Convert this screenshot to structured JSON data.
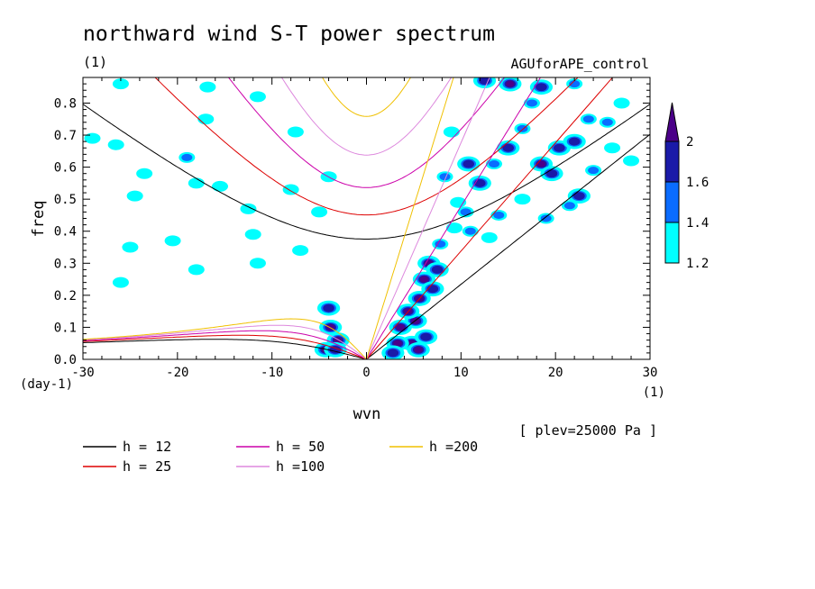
{
  "header": {
    "title": "northward wind S-T power spectrum",
    "subtitle_left": "(1)",
    "subtitle_right": "AGUforAPE_control",
    "plev": "[ plev=25000 Pa ]"
  },
  "chart_data": {
    "type": "heatmap",
    "title": "northward wind S-T power spectrum",
    "xlabel": "wvn",
    "ylabel": "freq",
    "x_unit_label": "(1)",
    "y_unit_label": "(day-1)",
    "xlim": [
      -30,
      30
    ],
    "ylim": [
      0,
      0.88
    ],
    "x_ticks": [
      -30,
      -20,
      -10,
      0,
      10,
      20,
      30
    ],
    "x_tick_labels": [
      "-30",
      "-20",
      "-10",
      "0",
      "10",
      "20",
      "30"
    ],
    "y_ticks": [
      0,
      0.1,
      0.2,
      0.3,
      0.4,
      0.5,
      0.6,
      0.7,
      0.8
    ],
    "y_tick_labels": [
      "0.0",
      "0.1",
      "0.2",
      "0.3",
      "0.4",
      "0.5",
      "0.6",
      "0.7",
      "0.8"
    ],
    "colorbar": {
      "levels": [
        1.2,
        1.4,
        1.6,
        2
      ],
      "level_labels": [
        "1.2",
        "1.4",
        "1.6",
        "2"
      ],
      "colors": [
        "#00ffff",
        "#0a6cff",
        "#1a1aa8",
        "#4b0088"
      ]
    },
    "dispersion_curves": [
      {
        "name": "h = 12",
        "h": 12,
        "color": "#000000"
      },
      {
        "name": "h = 25",
        "h": 25,
        "color": "#dd0000"
      },
      {
        "name": "h = 50",
        "h": 50,
        "color": "#cc00aa"
      },
      {
        "name": "h =100",
        "h": 100,
        "color": "#dd88dd"
      },
      {
        "name": "h =200",
        "h": 200,
        "color": "#f0c000"
      }
    ],
    "power_blobs": [
      {
        "x": 4.8,
        "y": 0.05,
        "level": 2
      },
      {
        "x": 5.2,
        "y": 0.12,
        "level": 2
      },
      {
        "x": 5.6,
        "y": 0.19,
        "level": 2
      },
      {
        "x": 6.1,
        "y": 0.25,
        "level": 2
      },
      {
        "x": 6.6,
        "y": 0.3,
        "level": 2
      },
      {
        "x": 3.3,
        "y": 0.05,
        "level": 2
      },
      {
        "x": 3.6,
        "y": 0.1,
        "level": 2
      },
      {
        "x": 4.4,
        "y": 0.15,
        "level": 2
      },
      {
        "x": 5.5,
        "y": 0.03,
        "level": 2
      },
      {
        "x": 7.0,
        "y": 0.22,
        "level": 1.6
      },
      {
        "x": 7.5,
        "y": 0.28,
        "level": 1.6
      },
      {
        "x": -3.8,
        "y": 0.1,
        "level": 2
      },
      {
        "x": -4.3,
        "y": 0.03,
        "level": 2
      },
      {
        "x": -3.0,
        "y": 0.06,
        "level": 2
      },
      {
        "x": -4.0,
        "y": 0.16,
        "level": 1.6
      },
      {
        "x": -3.3,
        "y": 0.03,
        "level": 1.6
      },
      {
        "x": 2.8,
        "y": 0.02,
        "level": 1.6
      },
      {
        "x": 6.3,
        "y": 0.07,
        "level": 1.6
      },
      {
        "x": 7.8,
        "y": 0.36,
        "level": 1.4
      },
      {
        "x": 9.3,
        "y": 0.41,
        "level": 1.2
      },
      {
        "x": 10.5,
        "y": 0.46,
        "level": 1.4
      },
      {
        "x": 12.0,
        "y": 0.55,
        "level": 1.6
      },
      {
        "x": 13.5,
        "y": 0.61,
        "level": 1.4
      },
      {
        "x": 15.0,
        "y": 0.66,
        "level": 1.6
      },
      {
        "x": 16.5,
        "y": 0.72,
        "level": 1.4
      },
      {
        "x": 18.5,
        "y": 0.61,
        "level": 2
      },
      {
        "x": 19.6,
        "y": 0.58,
        "level": 1.6
      },
      {
        "x": 20.4,
        "y": 0.66,
        "level": 1.6
      },
      {
        "x": 22.0,
        "y": 0.68,
        "level": 1.6
      },
      {
        "x": 22.5,
        "y": 0.51,
        "level": 1.6
      },
      {
        "x": 21.5,
        "y": 0.48,
        "level": 1.4
      },
      {
        "x": 24.0,
        "y": 0.59,
        "level": 1.4
      },
      {
        "x": 25.5,
        "y": 0.74,
        "level": 1.4
      },
      {
        "x": 27.0,
        "y": 0.8,
        "level": 1.2
      },
      {
        "x": 15.2,
        "y": 0.86,
        "level": 2
      },
      {
        "x": 18.5,
        "y": 0.85,
        "level": 1.6
      },
      {
        "x": 12.5,
        "y": 0.87,
        "level": 1.6
      },
      {
        "x": 22.0,
        "y": 0.86,
        "level": 1.4
      },
      {
        "x": 17.5,
        "y": 0.8,
        "level": 1.4
      },
      {
        "x": 23.5,
        "y": 0.75,
        "level": 1.4
      },
      {
        "x": 9.0,
        "y": 0.71,
        "level": 1.2
      },
      {
        "x": 10.8,
        "y": 0.61,
        "level": 1.6
      },
      {
        "x": 8.3,
        "y": 0.57,
        "level": 1.4
      },
      {
        "x": 9.7,
        "y": 0.49,
        "level": 1.2
      },
      {
        "x": 14.0,
        "y": 0.45,
        "level": 1.4
      },
      {
        "x": 16.5,
        "y": 0.5,
        "level": 1.2
      },
      {
        "x": 19.0,
        "y": 0.44,
        "level": 1.4
      },
      {
        "x": 26.0,
        "y": 0.66,
        "level": 1.2
      },
      {
        "x": 28.0,
        "y": 0.62,
        "level": 1.2
      },
      {
        "x": 13.0,
        "y": 0.38,
        "level": 1.2
      },
      {
        "x": 11.0,
        "y": 0.4,
        "level": 1.4
      },
      {
        "x": -26.5,
        "y": 0.67,
        "level": 1.2
      },
      {
        "x": -29.0,
        "y": 0.69,
        "level": 1.2
      },
      {
        "x": -23.5,
        "y": 0.58,
        "level": 1.2
      },
      {
        "x": -24.5,
        "y": 0.51,
        "level": 1.2
      },
      {
        "x": -19.0,
        "y": 0.63,
        "level": 1.4
      },
      {
        "x": -18.0,
        "y": 0.55,
        "level": 1.2
      },
      {
        "x": -17.0,
        "y": 0.75,
        "level": 1.2
      },
      {
        "x": -15.5,
        "y": 0.54,
        "level": 1.2
      },
      {
        "x": -20.5,
        "y": 0.37,
        "level": 1.2
      },
      {
        "x": -18.0,
        "y": 0.28,
        "level": 1.2
      },
      {
        "x": -12.0,
        "y": 0.39,
        "level": 1.2
      },
      {
        "x": -12.5,
        "y": 0.47,
        "level": 1.2
      },
      {
        "x": -8.0,
        "y": 0.53,
        "level": 1.2
      },
      {
        "x": -5.0,
        "y": 0.46,
        "level": 1.2
      },
      {
        "x": -4.0,
        "y": 0.57,
        "level": 1.2
      },
      {
        "x": -7.5,
        "y": 0.71,
        "level": 1.2
      },
      {
        "x": -26.0,
        "y": 0.86,
        "level": 1.2
      },
      {
        "x": -16.8,
        "y": 0.85,
        "level": 1.2
      },
      {
        "x": -11.5,
        "y": 0.82,
        "level": 1.2
      },
      {
        "x": -7.0,
        "y": 0.34,
        "level": 1.2
      },
      {
        "x": -11.5,
        "y": 0.3,
        "level": 1.2
      },
      {
        "x": -26.0,
        "y": 0.24,
        "level": 1.2
      },
      {
        "x": -25.0,
        "y": 0.35,
        "level": 1.2
      }
    ]
  }
}
